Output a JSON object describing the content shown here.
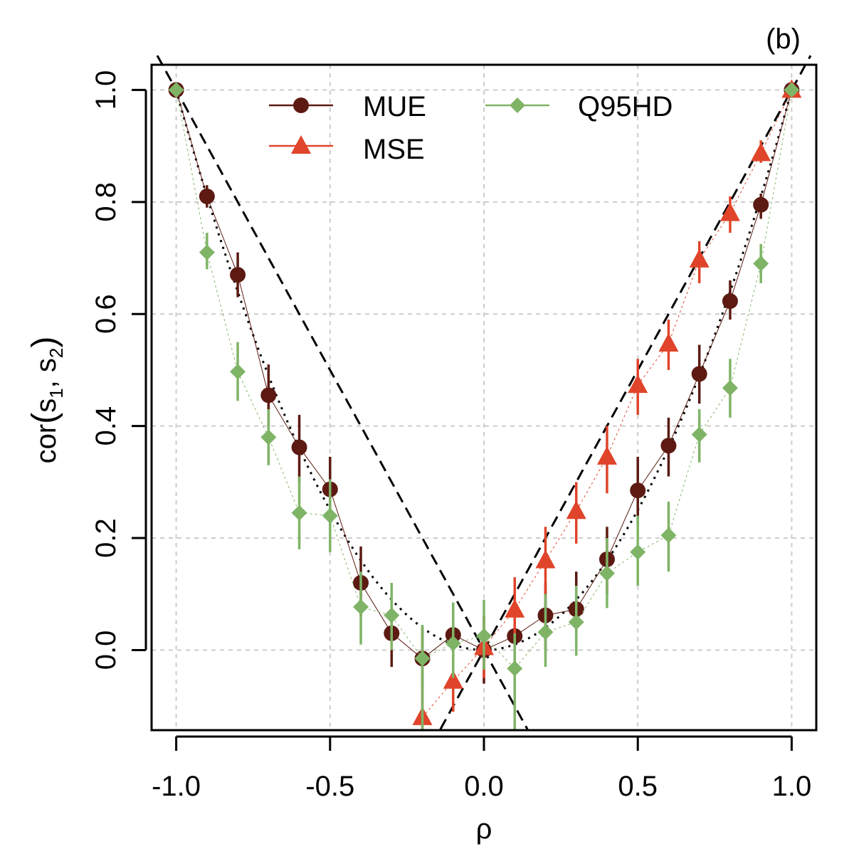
{
  "chart_data": {
    "type": "scatter",
    "panel_label": "(b)",
    "xlabel": "ρ",
    "ylabel": {
      "base": "cor",
      "a": "s",
      "a_sub": "1",
      "sep": ", ",
      "b": "s",
      "b_sub": "2"
    },
    "xlim": [
      -1.08,
      1.08
    ],
    "ylim": [
      -0.143,
      1.045
    ],
    "x_ticks": [
      -1.0,
      -0.5,
      0.0,
      0.5,
      1.0
    ],
    "x_tick_labels": [
      "-1.0",
      "-0.5",
      "0.0",
      "0.5",
      "1.0"
    ],
    "y_ticks": [
      0.0,
      0.2,
      0.4,
      0.6,
      0.8,
      1.0
    ],
    "y_tick_labels": [
      "0.0",
      "0.2",
      "0.4",
      "0.6",
      "0.8",
      "1.0"
    ],
    "grid": true,
    "legend_position": "top",
    "x": [
      -1.0,
      -0.9,
      -0.8,
      -0.7,
      -0.6,
      -0.5,
      -0.4,
      -0.3,
      -0.2,
      -0.1,
      0.0,
      0.1,
      0.2,
      0.3,
      0.4,
      0.5,
      0.6,
      0.7,
      0.8,
      0.9,
      1.0
    ],
    "series": [
      {
        "name": "MUE",
        "color": "#5c1a12",
        "marker": "circle",
        "values": [
          1.0,
          0.81,
          0.67,
          0.455,
          0.362,
          0.287,
          0.12,
          0.03,
          -0.015,
          0.027,
          0.0,
          0.025,
          0.062,
          0.073,
          0.162,
          0.285,
          0.365,
          0.493,
          0.623,
          0.795,
          1.0
        ],
        "err_low": [
          1.0,
          0.79,
          0.63,
          0.4,
          0.3,
          0.23,
          0.06,
          -0.03,
          -0.07,
          -0.03,
          -0.06,
          -0.03,
          0.0,
          0.01,
          0.1,
          0.22,
          0.31,
          0.44,
          0.59,
          0.77,
          1.0
        ],
        "err_high": [
          1.0,
          0.83,
          0.71,
          0.51,
          0.42,
          0.345,
          0.185,
          0.09,
          0.04,
          0.085,
          0.06,
          0.08,
          0.12,
          0.14,
          0.22,
          0.345,
          0.415,
          0.545,
          0.66,
          0.815,
          1.0
        ]
      },
      {
        "name": "MSE",
        "color": "#e0442a",
        "marker": "triangle",
        "values": [
          null,
          null,
          null,
          null,
          null,
          null,
          null,
          null,
          -0.12,
          -0.055,
          0.005,
          0.072,
          0.16,
          0.248,
          0.345,
          0.473,
          0.547,
          0.697,
          0.78,
          0.887,
          1.0
        ],
        "err_low": [
          null,
          null,
          null,
          null,
          null,
          null,
          null,
          null,
          -0.143,
          -0.11,
          -0.05,
          0.02,
          0.1,
          0.19,
          0.28,
          0.42,
          0.5,
          0.655,
          0.745,
          0.87,
          1.0
        ],
        "err_high": [
          null,
          null,
          null,
          null,
          null,
          null,
          null,
          null,
          -0.07,
          0.0,
          0.06,
          0.13,
          0.22,
          0.3,
          0.4,
          0.52,
          0.59,
          0.73,
          0.81,
          0.91,
          1.0
        ]
      },
      {
        "name": "Q95HD",
        "color": "#7fb466",
        "marker": "diamond",
        "values": [
          1.0,
          0.71,
          0.497,
          0.38,
          0.245,
          0.24,
          0.077,
          0.062,
          -0.015,
          0.012,
          0.025,
          -0.033,
          0.032,
          0.05,
          0.137,
          0.175,
          0.205,
          0.385,
          0.468,
          0.69,
          1.0
        ],
        "err_low": [
          1.0,
          0.68,
          0.445,
          0.33,
          0.18,
          0.175,
          0.01,
          0.0,
          -0.143,
          -0.05,
          -0.035,
          -0.143,
          -0.03,
          -0.01,
          0.075,
          0.115,
          0.14,
          0.335,
          0.415,
          0.655,
          1.0
        ],
        "err_high": [
          1.0,
          0.745,
          0.55,
          0.43,
          0.31,
          0.305,
          0.14,
          0.12,
          0.045,
          0.085,
          0.09,
          0.03,
          0.1,
          0.115,
          0.2,
          0.24,
          0.265,
          0.43,
          0.52,
          0.725,
          1.0
        ]
      }
    ],
    "reference_curves": [
      {
        "name": "dashed-positive",
        "style": "dashed",
        "x_range": [
          -0.16,
          1.08
        ],
        "formula": "y = x"
      },
      {
        "name": "dashed-negative",
        "style": "dashed",
        "x_range": [
          -1.08,
          0.16
        ],
        "formula": "y = -x"
      },
      {
        "name": "dotted-square",
        "style": "dotted",
        "x_range": [
          -1.0,
          1.0
        ],
        "formula": "y = x^2"
      }
    ]
  }
}
